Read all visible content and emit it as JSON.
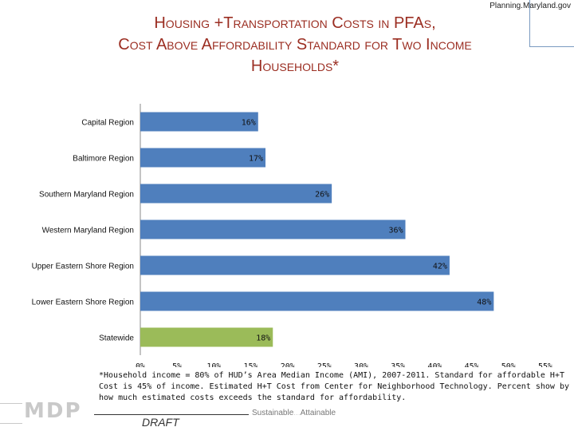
{
  "header": {
    "url_label": "Planning.Maryland.gov"
  },
  "title_lines": [
    "Housing +Transportation Costs in PFAs,",
    "Cost Above Affordability Standard for Two Income",
    "Households*"
  ],
  "footnote": "*Household income = 80% of HUD’s Area Median Income (AMI), 2007-2011. Standard for affordable H+T Cost is 45% of income. Estimated H+T Cost from Center for Neighborhood Technology. Percent show by how much estimated costs exceeds the standard for affordability.",
  "footer": {
    "logo_text": "MDP",
    "draft_label": "DRAFT",
    "tagline_part1": "Sustainable",
    "tagline_sep": "...",
    "tagline_part2": "Attainable"
  },
  "colors": {
    "bar_default": "#4f7fbd",
    "bar_highlight": "#9bbb59",
    "title": "#9b2e22",
    "axis": "#888888"
  },
  "chart_data": {
    "type": "bar",
    "orientation": "horizontal",
    "categories": [
      "Capital Region",
      "Baltimore Region",
      "Southern Maryland Region",
      "Western Maryland Region",
      "Upper Eastern Shore Region",
      "Lower Eastern Shore Region",
      "Statewide"
    ],
    "values": [
      16,
      17,
      26,
      36,
      42,
      48,
      18
    ],
    "value_labels": [
      "16%",
      "17%",
      "26%",
      "36%",
      "42%",
      "48%",
      "18%"
    ],
    "highlight_index": 6,
    "xlim": [
      0,
      55
    ],
    "xticks": [
      "0%",
      "5%",
      "10%",
      "15%",
      "20%",
      "25%",
      "30%",
      "35%",
      "40%",
      "45%",
      "50%",
      "55%"
    ],
    "grid": false,
    "legend": "none"
  }
}
